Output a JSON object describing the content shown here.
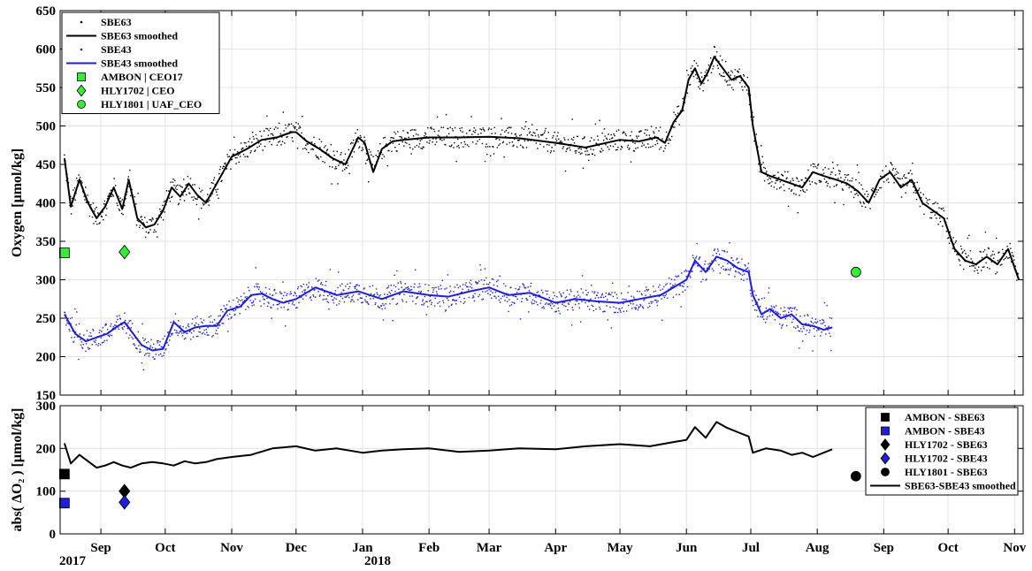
{
  "chart_data": [
    {
      "type": "line",
      "ylabel": "Oxygen [μmol/kg]",
      "ylim": [
        150,
        650
      ],
      "yticks": [
        150,
        200,
        250,
        300,
        350,
        400,
        450,
        500,
        550,
        600,
        650
      ],
      "grid": true,
      "legend_position": "top-left",
      "legend": [
        {
          "label": "SBE63",
          "marker": "dot",
          "color": "#000000"
        },
        {
          "label": "SBE63 smoothed",
          "marker": "line",
          "color": "#000000"
        },
        {
          "label": "SBE43",
          "marker": "dot",
          "color": "#1f1fd6"
        },
        {
          "label": "SBE43 smoothed",
          "marker": "line",
          "color": "#1f1fd6"
        },
        {
          "label": "AMBON | CEO17",
          "marker": "square",
          "color": "#33ee33"
        },
        {
          "label": "HLY1702 | CEO",
          "marker": "diamond",
          "color": "#33ee33"
        },
        {
          "label": "HLY1801 | UAF_CEO",
          "marker": "circle",
          "color": "#33ee33"
        }
      ],
      "series": [
        {
          "name": "SBE63 smoothed",
          "color": "#000000",
          "x": [
            "2017-08-15",
            "2017-08-18",
            "2017-08-22",
            "2017-08-26",
            "2017-08-30",
            "2017-09-03",
            "2017-09-07",
            "2017-09-11",
            "2017-09-14",
            "2017-09-18",
            "2017-09-22",
            "2017-09-26",
            "2017-09-30",
            "2017-10-04",
            "2017-10-08",
            "2017-10-12",
            "2017-10-16",
            "2017-10-20",
            "2017-10-24",
            "2017-10-28",
            "2017-11-01",
            "2017-11-08",
            "2017-11-15",
            "2017-11-22",
            "2017-11-29",
            "2017-12-01",
            "2017-12-06",
            "2017-12-12",
            "2017-12-18",
            "2017-12-24",
            "2017-12-30",
            "2018-01-02",
            "2018-01-06",
            "2018-01-10",
            "2018-01-15",
            "2018-01-20",
            "2018-02-01",
            "2018-02-15",
            "2018-03-01",
            "2018-03-15",
            "2018-04-01",
            "2018-04-15",
            "2018-05-01",
            "2018-05-10",
            "2018-05-18",
            "2018-05-22",
            "2018-05-26",
            "2018-05-30",
            "2018-06-02",
            "2018-06-05",
            "2018-06-08",
            "2018-06-11",
            "2018-06-14",
            "2018-06-18",
            "2018-06-22",
            "2018-06-26",
            "2018-06-30",
            "2018-07-02",
            "2018-07-06",
            "2018-07-10",
            "2018-07-15",
            "2018-07-20",
            "2018-07-25",
            "2018-07-30",
            "2018-08-04",
            "2018-08-10",
            "2018-08-15",
            "2018-08-20",
            "2018-08-25",
            "2018-08-30",
            "2018-09-04",
            "2018-09-09",
            "2018-09-14",
            "2018-09-19",
            "2018-09-24",
            "2018-09-29",
            "2018-10-04",
            "2018-10-09",
            "2018-10-14",
            "2018-10-19",
            "2018-10-24",
            "2018-10-29",
            "2018-11-03"
          ],
          "y": [
            458,
            395,
            430,
            400,
            380,
            395,
            420,
            392,
            430,
            380,
            368,
            372,
            390,
            420,
            408,
            425,
            410,
            400,
            420,
            440,
            460,
            470,
            482,
            485,
            492,
            492,
            480,
            470,
            458,
            450,
            485,
            478,
            440,
            470,
            480,
            482,
            485,
            485,
            486,
            484,
            478,
            472,
            482,
            480,
            485,
            478,
            505,
            520,
            560,
            575,
            555,
            570,
            590,
            575,
            560,
            565,
            550,
            500,
            440,
            435,
            430,
            425,
            420,
            440,
            435,
            430,
            425,
            415,
            400,
            430,
            440,
            420,
            430,
            400,
            390,
            380,
            340,
            325,
            320,
            330,
            320,
            340,
            300
          ]
        },
        {
          "name": "SBE43 smoothed",
          "color": "#1f1fd6",
          "x": [
            "2017-08-15",
            "2017-08-20",
            "2017-08-25",
            "2017-08-30",
            "2017-09-04",
            "2017-09-09",
            "2017-09-12",
            "2017-09-16",
            "2017-09-20",
            "2017-09-25",
            "2017-09-30",
            "2017-10-05",
            "2017-10-10",
            "2017-10-15",
            "2017-10-20",
            "2017-10-25",
            "2017-10-30",
            "2017-11-05",
            "2017-11-10",
            "2017-11-15",
            "2017-11-20",
            "2017-11-25",
            "2017-12-01",
            "2017-12-10",
            "2017-12-20",
            "2017-12-30",
            "2018-01-10",
            "2018-01-20",
            "2018-02-01",
            "2018-02-10",
            "2018-02-20",
            "2018-03-01",
            "2018-03-10",
            "2018-03-20",
            "2018-04-01",
            "2018-04-10",
            "2018-04-20",
            "2018-05-01",
            "2018-05-10",
            "2018-05-20",
            "2018-05-26",
            "2018-06-01",
            "2018-06-05",
            "2018-06-10",
            "2018-06-15",
            "2018-06-20",
            "2018-06-25",
            "2018-06-30",
            "2018-07-02",
            "2018-07-06",
            "2018-07-10",
            "2018-07-15",
            "2018-07-20",
            "2018-07-25",
            "2018-07-30",
            "2018-08-04",
            "2018-08-08"
          ],
          "y": [
            255,
            230,
            220,
            225,
            230,
            240,
            245,
            230,
            215,
            208,
            210,
            245,
            232,
            238,
            240,
            240,
            260,
            265,
            280,
            282,
            275,
            270,
            275,
            290,
            280,
            285,
            275,
            285,
            280,
            278,
            285,
            290,
            280,
            283,
            270,
            275,
            272,
            270,
            275,
            280,
            290,
            300,
            325,
            310,
            330,
            325,
            315,
            310,
            280,
            255,
            262,
            250,
            255,
            242,
            240,
            235,
            238
          ]
        }
      ],
      "reference_points": [
        {
          "name": "AMBON | CEO17",
          "x": "2017-08-15",
          "y": 335,
          "marker": "square"
        },
        {
          "name": "HLY1702 | CEO",
          "x": "2017-09-12",
          "y": 336,
          "marker": "diamond"
        },
        {
          "name": "HLY1801 | UAF_CEO",
          "x": "2018-08-19",
          "y": 310,
          "marker": "circle"
        }
      ]
    },
    {
      "type": "line",
      "ylabel": "abs( ΔO₂ ) [μmol/kg]",
      "ylim": [
        0,
        300
      ],
      "yticks": [
        0,
        100,
        200,
        300
      ],
      "grid": true,
      "legend_position": "top-right",
      "legend": [
        {
          "label": "AMBON - SBE63",
          "marker": "square",
          "color": "#000000"
        },
        {
          "label": "AMBON - SBE43",
          "marker": "square",
          "color": "#1f1fd6"
        },
        {
          "label": "HLY1702 - SBE63",
          "marker": "diamond",
          "color": "#000000"
        },
        {
          "label": "HLY1702 - SBE43",
          "marker": "diamond",
          "color": "#1f1fd6"
        },
        {
          "label": "HLY1801 - SBE63",
          "marker": "circle",
          "color": "#000000"
        },
        {
          "label": "SBE63-SBE43 smoothed",
          "marker": "line",
          "color": "#000000"
        }
      ],
      "series": [
        {
          "name": "SBE63-SBE43 smoothed",
          "color": "#000000",
          "x": [
            "2017-08-15",
            "2017-08-18",
            "2017-08-22",
            "2017-08-26",
            "2017-08-30",
            "2017-09-03",
            "2017-09-07",
            "2017-09-11",
            "2017-09-15",
            "2017-09-20",
            "2017-09-25",
            "2017-09-30",
            "2017-10-05",
            "2017-10-10",
            "2017-10-15",
            "2017-10-20",
            "2017-10-25",
            "2017-11-01",
            "2017-11-10",
            "2017-11-20",
            "2017-12-01",
            "2017-12-10",
            "2017-12-20",
            "2018-01-01",
            "2018-01-10",
            "2018-01-20",
            "2018-02-01",
            "2018-02-15",
            "2018-03-01",
            "2018-03-15",
            "2018-04-01",
            "2018-04-15",
            "2018-05-01",
            "2018-05-15",
            "2018-05-26",
            "2018-06-01",
            "2018-06-05",
            "2018-06-10",
            "2018-06-15",
            "2018-06-20",
            "2018-06-25",
            "2018-06-30",
            "2018-07-02",
            "2018-07-08",
            "2018-07-15",
            "2018-07-20",
            "2018-07-25",
            "2018-07-30",
            "2018-08-04",
            "2018-08-08"
          ],
          "y": [
            212,
            165,
            185,
            170,
            155,
            160,
            168,
            160,
            155,
            165,
            168,
            165,
            160,
            170,
            165,
            168,
            175,
            180,
            185,
            200,
            205,
            195,
            200,
            190,
            195,
            198,
            200,
            192,
            195,
            200,
            198,
            205,
            210,
            205,
            215,
            220,
            250,
            225,
            262,
            248,
            238,
            228,
            190,
            200,
            195,
            185,
            190,
            180,
            190,
            198
          ]
        }
      ],
      "reference_points": [
        {
          "name": "AMBON - SBE63",
          "x": "2017-08-15",
          "y": 140,
          "marker": "square",
          "color": "#000000"
        },
        {
          "name": "AMBON - SBE43",
          "x": "2017-08-15",
          "y": 72,
          "marker": "square",
          "color": "#1f1fd6"
        },
        {
          "name": "HLY1702 - SBE63",
          "x": "2017-09-12",
          "y": 100,
          "marker": "diamond",
          "color": "#000000"
        },
        {
          "name": "HLY1702 - SBE43",
          "x": "2017-09-12",
          "y": 74,
          "marker": "diamond",
          "color": "#1f1fd6"
        },
        {
          "name": "HLY1801 - SBE63",
          "x": "2018-08-19",
          "y": 135,
          "marker": "circle",
          "color": "#000000"
        }
      ]
    }
  ],
  "x_axis": {
    "range": [
      "2017-08-13",
      "2018-11-05"
    ],
    "month_ticks": [
      {
        "date": "2017-09-01",
        "label": "Sep"
      },
      {
        "date": "2017-10-01",
        "label": "Oct"
      },
      {
        "date": "2017-11-01",
        "label": "Nov"
      },
      {
        "date": "2017-12-01",
        "label": "Dec"
      },
      {
        "date": "2018-01-01",
        "label": "Jan"
      },
      {
        "date": "2018-02-01",
        "label": "Feb"
      },
      {
        "date": "2018-03-01",
        "label": "Mar"
      },
      {
        "date": "2018-04-01",
        "label": "Apr"
      },
      {
        "date": "2018-05-01",
        "label": "May"
      },
      {
        "date": "2018-06-01",
        "label": "Jun"
      },
      {
        "date": "2018-07-01",
        "label": "Jul"
      },
      {
        "date": "2018-08-01",
        "label": "Aug"
      },
      {
        "date": "2018-09-01",
        "label": "Sep"
      },
      {
        "date": "2018-10-01",
        "label": "Oct"
      },
      {
        "date": "2018-11-01",
        "label": "Nov"
      }
    ],
    "year_labels": [
      {
        "date": "2017-08-13",
        "label": "2017"
      },
      {
        "date": "2018-01-01",
        "label": "2018"
      }
    ]
  }
}
